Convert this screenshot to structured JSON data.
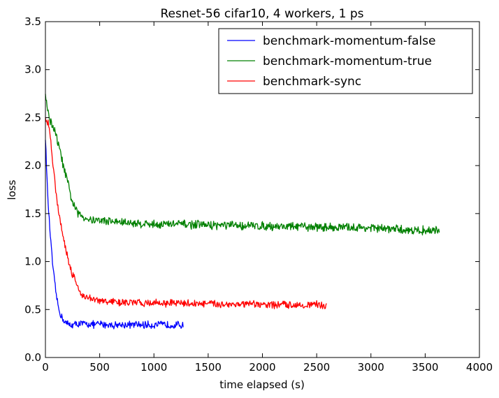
{
  "chart_data": {
    "type": "line",
    "title": "Resnet-56 cifar10, 4 workers, 1 ps",
    "xlabel": "time elapsed (s)",
    "ylabel": "loss",
    "xlim": [
      0,
      4000
    ],
    "ylim": [
      0.0,
      3.5
    ],
    "xticks": [
      0,
      500,
      1000,
      1500,
      2000,
      2500,
      3000,
      3500,
      4000
    ],
    "yticks": [
      0.0,
      0.5,
      1.0,
      1.5,
      2.0,
      2.5,
      3.0,
      3.5
    ],
    "xtick_labels": [
      "0",
      "500",
      "1000",
      "1500",
      "2000",
      "2500",
      "3000",
      "3500",
      "4000"
    ],
    "ytick_labels": [
      "0.0",
      "0.5",
      "1.0",
      "1.5",
      "2.0",
      "2.5",
      "3.0",
      "3.5"
    ],
    "grid": false,
    "legend_position": "top-right",
    "series": [
      {
        "name": "benchmark-momentum-false",
        "color": "#0000ff",
        "x": [
          0,
          20,
          40,
          60,
          80,
          100,
          120,
          140,
          160,
          180,
          200,
          230,
          260,
          300,
          350,
          400,
          450,
          500,
          600,
          700,
          800,
          900,
          1000,
          1100,
          1200,
          1270
        ],
        "y": [
          2.3,
          1.7,
          1.35,
          1.05,
          0.82,
          0.65,
          0.52,
          0.45,
          0.4,
          0.37,
          0.35,
          0.34,
          0.34,
          0.35,
          0.35,
          0.35,
          0.34,
          0.35,
          0.34,
          0.34,
          0.34,
          0.34,
          0.34,
          0.34,
          0.34,
          0.34
        ],
        "noise": 0.035
      },
      {
        "name": "benchmark-momentum-true",
        "color": "#008000",
        "x": [
          0,
          25,
          50,
          75,
          100,
          125,
          150,
          175,
          200,
          225,
          250,
          275,
          300,
          350,
          400,
          500,
          600,
          800,
          1000,
          1200,
          1500,
          2000,
          2500,
          3000,
          3300,
          3630
        ],
        "y": [
          2.75,
          2.55,
          2.45,
          2.4,
          2.3,
          2.2,
          2.07,
          1.95,
          1.85,
          1.72,
          1.62,
          1.55,
          1.5,
          1.47,
          1.44,
          1.43,
          1.42,
          1.4,
          1.39,
          1.39,
          1.38,
          1.37,
          1.36,
          1.35,
          1.33,
          1.32
        ],
        "noise": 0.04
      },
      {
        "name": "benchmark-sync",
        "color": "#ff0000",
        "x": [
          0,
          25,
          50,
          75,
          100,
          125,
          150,
          175,
          200,
          225,
          250,
          275,
          300,
          325,
          350,
          400,
          450,
          500,
          600,
          800,
          1000,
          1500,
          2000,
          2500,
          2590
        ],
        "y": [
          2.48,
          2.45,
          2.25,
          1.95,
          1.7,
          1.5,
          1.35,
          1.2,
          1.07,
          0.96,
          0.87,
          0.8,
          0.73,
          0.68,
          0.64,
          0.62,
          0.6,
          0.59,
          0.58,
          0.57,
          0.57,
          0.56,
          0.55,
          0.55,
          0.54
        ],
        "noise": 0.035
      }
    ]
  }
}
